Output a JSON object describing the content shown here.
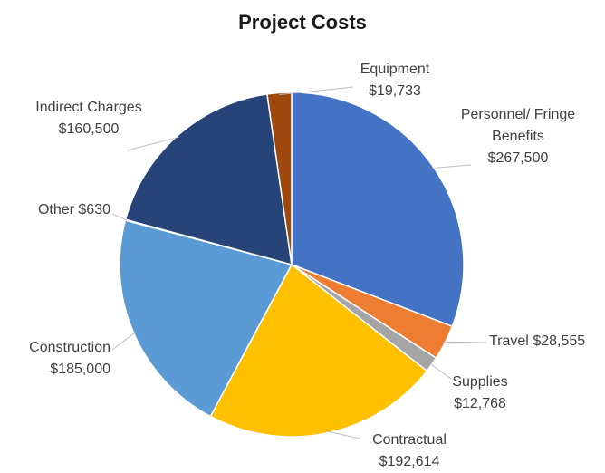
{
  "chart_data": {
    "type": "pie",
    "title": "Project Costs",
    "categories": [
      "Personnel/ Fringe Benefits",
      "Travel",
      "Supplies",
      "Contractual",
      "Construction",
      "Other",
      "Indirect Charges",
      "Equipment"
    ],
    "values": [
      267500,
      28555,
      12768,
      192614,
      185000,
      630,
      160500,
      19733
    ],
    "value_labels": [
      "$267,500",
      "$28,555",
      "$12,768",
      "$192,614",
      "$185,000",
      "$630",
      "$160,500",
      "$19,733"
    ],
    "colors": [
      "#4472c4",
      "#ed7d31",
      "#a5a5a5",
      "#ffc000",
      "#5b9bd5",
      "#70ad47",
      "#264478",
      "#9e480e"
    ]
  }
}
